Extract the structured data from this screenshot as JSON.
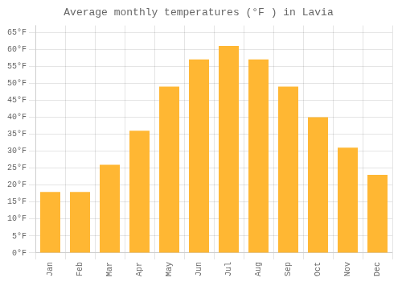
{
  "chart_data": {
    "type": "bar",
    "title": "Average monthly temperatures (°F ) in Lavia",
    "categories": [
      "Jan",
      "Feb",
      "Mar",
      "Apr",
      "May",
      "Jun",
      "Jul",
      "Aug",
      "Sep",
      "Oct",
      "Nov",
      "Dec"
    ],
    "values": [
      18,
      18,
      26,
      36,
      49,
      57,
      61,
      57,
      49,
      40,
      31,
      23
    ],
    "color": "#FFB733",
    "ylim": [
      0,
      67
    ],
    "yticks": [
      {
        "value": 0,
        "label": "0°F"
      },
      {
        "value": 5,
        "label": "5°F"
      },
      {
        "value": 10,
        "label": "10°F"
      },
      {
        "value": 15,
        "label": "15°F"
      },
      {
        "value": 20,
        "label": "20°F"
      },
      {
        "value": 25,
        "label": "25°F"
      },
      {
        "value": 30,
        "label": "30°F"
      },
      {
        "value": 35,
        "label": "35°F"
      },
      {
        "value": 40,
        "label": "40°F"
      },
      {
        "value": 45,
        "label": "45°F"
      },
      {
        "value": 50,
        "label": "50°F"
      },
      {
        "value": 55,
        "label": "55°F"
      },
      {
        "value": 60,
        "label": "60°F"
      },
      {
        "value": 65,
        "label": "65°F"
      }
    ],
    "grid": true
  }
}
